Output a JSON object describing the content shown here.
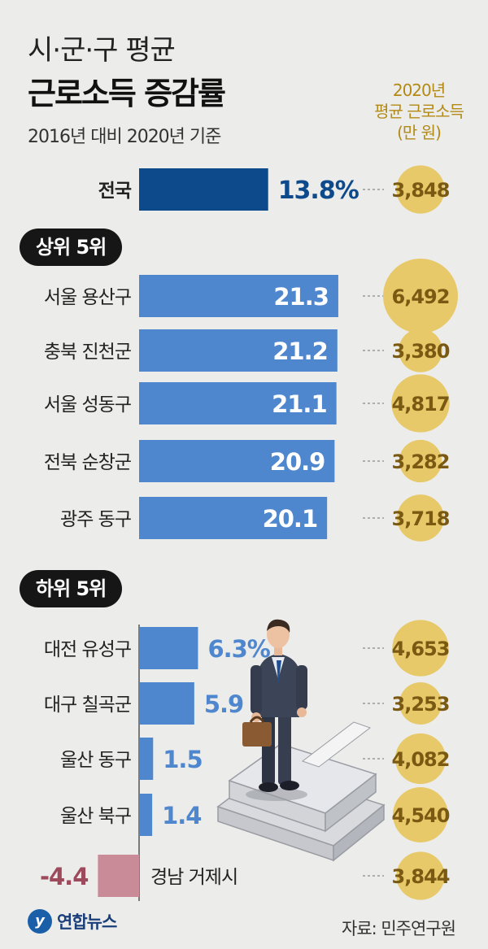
{
  "header": {
    "title_line1": "시·군·구 평균",
    "title_line2": "근로소득 증감률",
    "subtitle": "2016년 대비 2020년 기준",
    "right_header_line1": "2020년",
    "right_header_line2": "평균 근로소득",
    "right_header_line3": "(만 원)"
  },
  "sections": {
    "top": "상위 5위",
    "bottom": "하위 5위"
  },
  "footer": {
    "source": "자료: 민주연구원",
    "logo_text": "연합뉴스"
  },
  "colors": {
    "national_bar": "#0d4a8c",
    "top_bar": "#4f87cf",
    "negative_bar": "#c98b98",
    "circle": "#e7c96a",
    "circle_text": "#7a5a12",
    "national_label": "#0d4a8c",
    "light_label": "#4f87cf",
    "negative_label": "#9c4a5c"
  },
  "chart_data": {
    "type": "bar",
    "title": "시·군·구 평균 근로소득 증감률",
    "subtitle": "2016년 대비 2020년 기준",
    "xlabel": "",
    "ylabel": "",
    "categories": [
      "전국",
      "서울 용산구",
      "충북 진천군",
      "서울 성동구",
      "전북 순창군",
      "광주 동구",
      "대전 유성구",
      "대구 칠곡군",
      "울산 동구",
      "울산 북구",
      "경남 거제시"
    ],
    "value_labels": [
      "13.8%",
      "21.3",
      "21.2",
      "21.1",
      "20.9",
      "20.1",
      "6.3%",
      "5.9",
      "1.5",
      "1.4",
      "-4.4"
    ],
    "series": [
      {
        "values": [
          13.8,
          21.3,
          21.2,
          21.1,
          20.9,
          20.1,
          6.3,
          5.9,
          1.5,
          1.4,
          -4.4
        ]
      },
      {
        "name": "2020년 평균 근로소득 (만 원)",
        "values": [
          3848,
          6492,
          3380,
          4817,
          3282,
          3718,
          4653,
          3253,
          4082,
          4540,
          3844
        ]
      }
    ],
    "income_labels": [
      "3,848",
      "6,492",
      "3,380",
      "4,817",
      "3,282",
      "3,718",
      "4,653",
      "3,253",
      "4,082",
      "4,540",
      "3,844"
    ],
    "groups": [
      "national",
      "top",
      "top",
      "top",
      "top",
      "top",
      "bottom",
      "bottom",
      "bottom",
      "bottom",
      "bottom"
    ]
  }
}
